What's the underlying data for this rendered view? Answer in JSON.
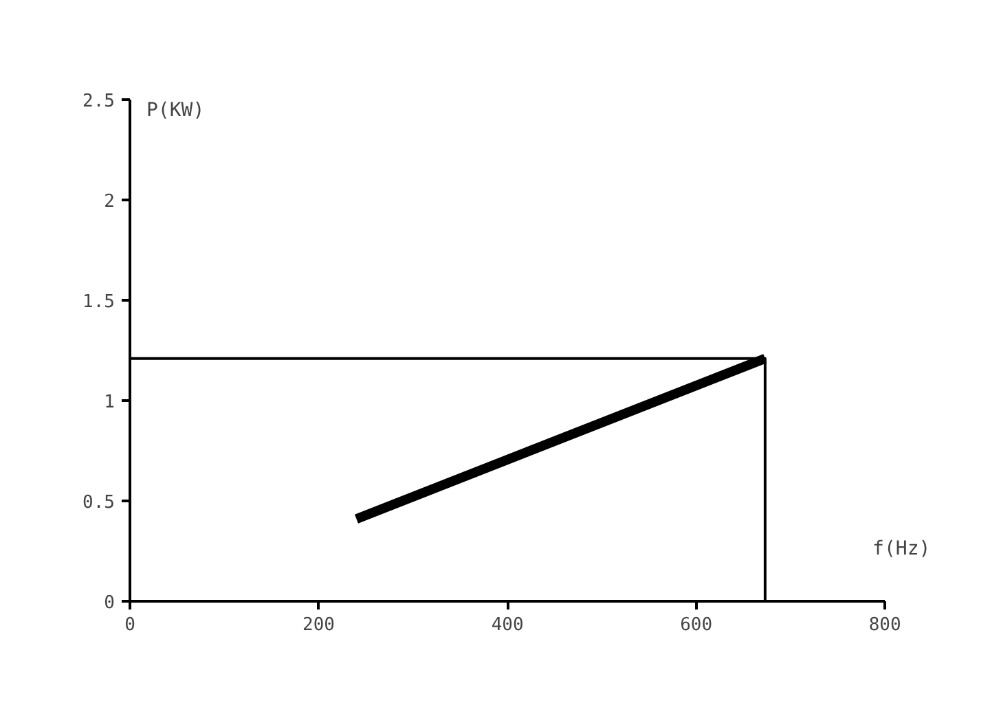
{
  "chart_data": {
    "type": "line",
    "xlabel": "f(Hz)",
    "ylabel": "P(KW)",
    "xlim": [
      0,
      800
    ],
    "ylim": [
      0,
      2.5
    ],
    "xticks": [
      0,
      200,
      400,
      600,
      800
    ],
    "yticks": [
      0,
      0.5,
      1,
      1.5,
      2,
      2.5
    ],
    "grid": false,
    "marker": "none",
    "series": [
      {
        "color": "#000000",
        "x": [
          240,
          673
        ],
        "values": [
          0.41,
          1.21
        ]
      },
      {
        "color": "#000000",
        "x": [
          0,
          673,
          673
        ],
        "values": [
          1.21,
          1.21,
          0
        ]
      }
    ]
  }
}
